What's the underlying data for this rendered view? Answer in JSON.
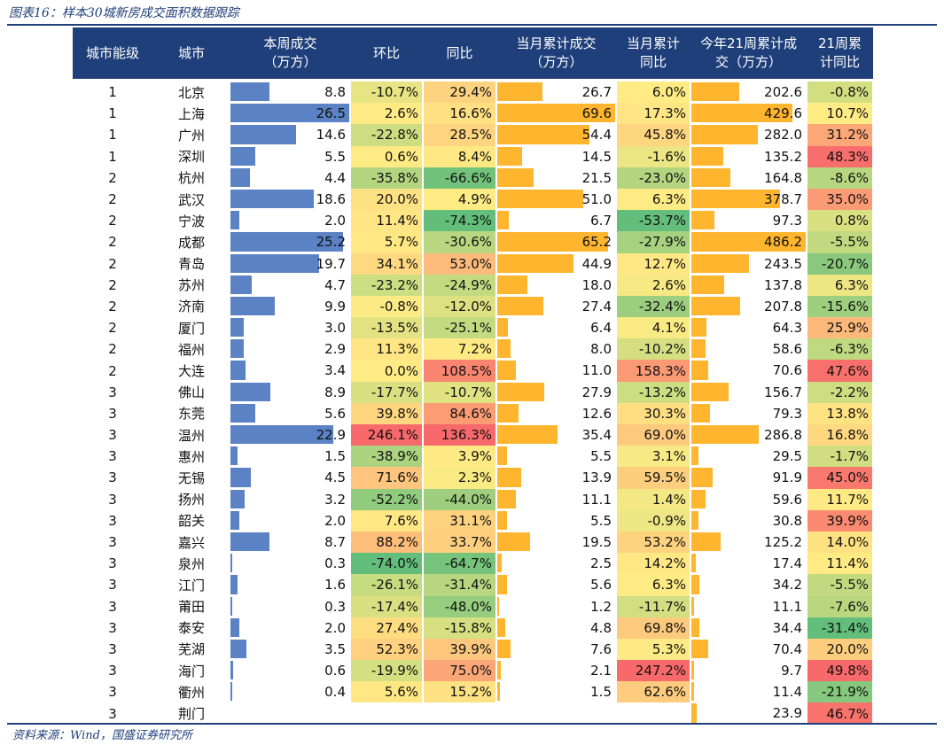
{
  "figure_title": "图表16：样本30城新房成交面积数据跟踪",
  "source_note": "资料来源：Wind，国盛证券研究所",
  "colors": {
    "header_bg": "#1f3f7a",
    "bar_blue": "#5b82c4",
    "bar_orange": "#ffb52e"
  },
  "columns": [
    "城市能级",
    "城市",
    "本周成交\n（万方）",
    "环比",
    "同比",
    "当月累计成交\n（万方）",
    "当月累计\n同比",
    "今年21周累计成\n交（万方）",
    "21周累\n计同比"
  ],
  "rows": [
    [
      "1",
      "北京",
      "8.8",
      "-10.7%",
      "29.4%",
      "26.7",
      "6.0%",
      "202.6",
      "-0.8%"
    ],
    [
      "1",
      "上海",
      "26.5",
      "2.6%",
      "16.6%",
      "69.6",
      "17.3%",
      "429.6",
      "10.7%"
    ],
    [
      "1",
      "广州",
      "14.6",
      "-22.8%",
      "28.5%",
      "54.4",
      "45.8%",
      "282.0",
      "31.2%"
    ],
    [
      "1",
      "深圳",
      "5.5",
      "0.6%",
      "8.4%",
      "14.5",
      "-1.6%",
      "135.2",
      "48.3%"
    ],
    [
      "2",
      "杭州",
      "4.4",
      "-35.8%",
      "-66.6%",
      "21.5",
      "-23.0%",
      "164.8",
      "-8.6%"
    ],
    [
      "2",
      "武汉",
      "18.6",
      "20.0%",
      "4.9%",
      "51.0",
      "6.3%",
      "378.7",
      "35.0%"
    ],
    [
      "2",
      "宁波",
      "2.0",
      "11.4%",
      "-74.3%",
      "6.7",
      "-53.7%",
      "97.3",
      "0.8%"
    ],
    [
      "2",
      "成都",
      "25.2",
      "5.7%",
      "-30.6%",
      "65.2",
      "-27.9%",
      "486.2",
      "-5.5%"
    ],
    [
      "2",
      "青岛",
      "19.7",
      "34.1%",
      "53.0%",
      "44.9",
      "12.7%",
      "243.5",
      "-20.7%"
    ],
    [
      "2",
      "苏州",
      "4.7",
      "-23.2%",
      "-24.9%",
      "18.0",
      "2.6%",
      "137.8",
      "6.3%"
    ],
    [
      "2",
      "济南",
      "9.9",
      "-0.8%",
      "-12.0%",
      "27.4",
      "-32.4%",
      "207.8",
      "-15.6%"
    ],
    [
      "2",
      "厦门",
      "3.0",
      "-13.5%",
      "-25.1%",
      "6.4",
      "4.1%",
      "64.3",
      "25.9%"
    ],
    [
      "2",
      "福州",
      "2.9",
      "11.3%",
      "7.2%",
      "8.0",
      "-10.2%",
      "58.6",
      "-6.3%"
    ],
    [
      "2",
      "大连",
      "3.4",
      "0.0%",
      "108.5%",
      "11.0",
      "158.3%",
      "70.6",
      "47.6%"
    ],
    [
      "3",
      "佛山",
      "8.9",
      "-17.7%",
      "-10.7%",
      "27.9",
      "-13.2%",
      "156.7",
      "-2.2%"
    ],
    [
      "3",
      "东莞",
      "5.6",
      "39.8%",
      "84.6%",
      "12.6",
      "30.3%",
      "79.3",
      "13.8%"
    ],
    [
      "3",
      "温州",
      "22.9",
      "246.1%",
      "136.3%",
      "35.4",
      "69.0%",
      "286.8",
      "16.8%"
    ],
    [
      "3",
      "惠州",
      "1.5",
      "-38.9%",
      "3.9%",
      "5.5",
      "3.1%",
      "29.5",
      "-1.7%"
    ],
    [
      "3",
      "无锡",
      "4.5",
      "71.6%",
      "2.3%",
      "13.9",
      "59.5%",
      "91.9",
      "45.0%"
    ],
    [
      "3",
      "扬州",
      "3.2",
      "-52.2%",
      "-44.0%",
      "11.1",
      "1.4%",
      "59.6",
      "11.7%"
    ],
    [
      "3",
      "韶关",
      "2.0",
      "7.6%",
      "31.1%",
      "5.5",
      "-0.9%",
      "30.8",
      "39.9%"
    ],
    [
      "3",
      "嘉兴",
      "8.7",
      "88.2%",
      "33.7%",
      "19.5",
      "53.2%",
      "125.2",
      "14.0%"
    ],
    [
      "3",
      "泉州",
      "0.3",
      "-74.0%",
      "-64.7%",
      "2.5",
      "14.2%",
      "17.4",
      "11.4%"
    ],
    [
      "3",
      "江门",
      "1.6",
      "-26.1%",
      "-31.4%",
      "5.6",
      "6.3%",
      "34.2",
      "-5.5%"
    ],
    [
      "3",
      "莆田",
      "0.3",
      "-17.4%",
      "-48.0%",
      "1.2",
      "-11.7%",
      "11.1",
      "-7.6%"
    ],
    [
      "3",
      "泰安",
      "2.0",
      "27.4%",
      "-15.8%",
      "4.8",
      "69.8%",
      "34.4",
      "-31.4%"
    ],
    [
      "3",
      "芜湖",
      "3.5",
      "52.3%",
      "39.9%",
      "7.6",
      "5.3%",
      "70.4",
      "20.0%"
    ],
    [
      "3",
      "海门",
      "0.6",
      "-19.9%",
      "75.0%",
      "2.1",
      "247.2%",
      "9.7",
      "49.8%"
    ],
    [
      "3",
      "衢州",
      "0.4",
      "5.6%",
      "15.2%",
      "1.5",
      "62.6%",
      "11.4",
      "-21.9%"
    ],
    [
      "3",
      "荆门",
      "",
      "",
      "",
      "",
      "",
      "23.9",
      "46.7%"
    ]
  ]
}
